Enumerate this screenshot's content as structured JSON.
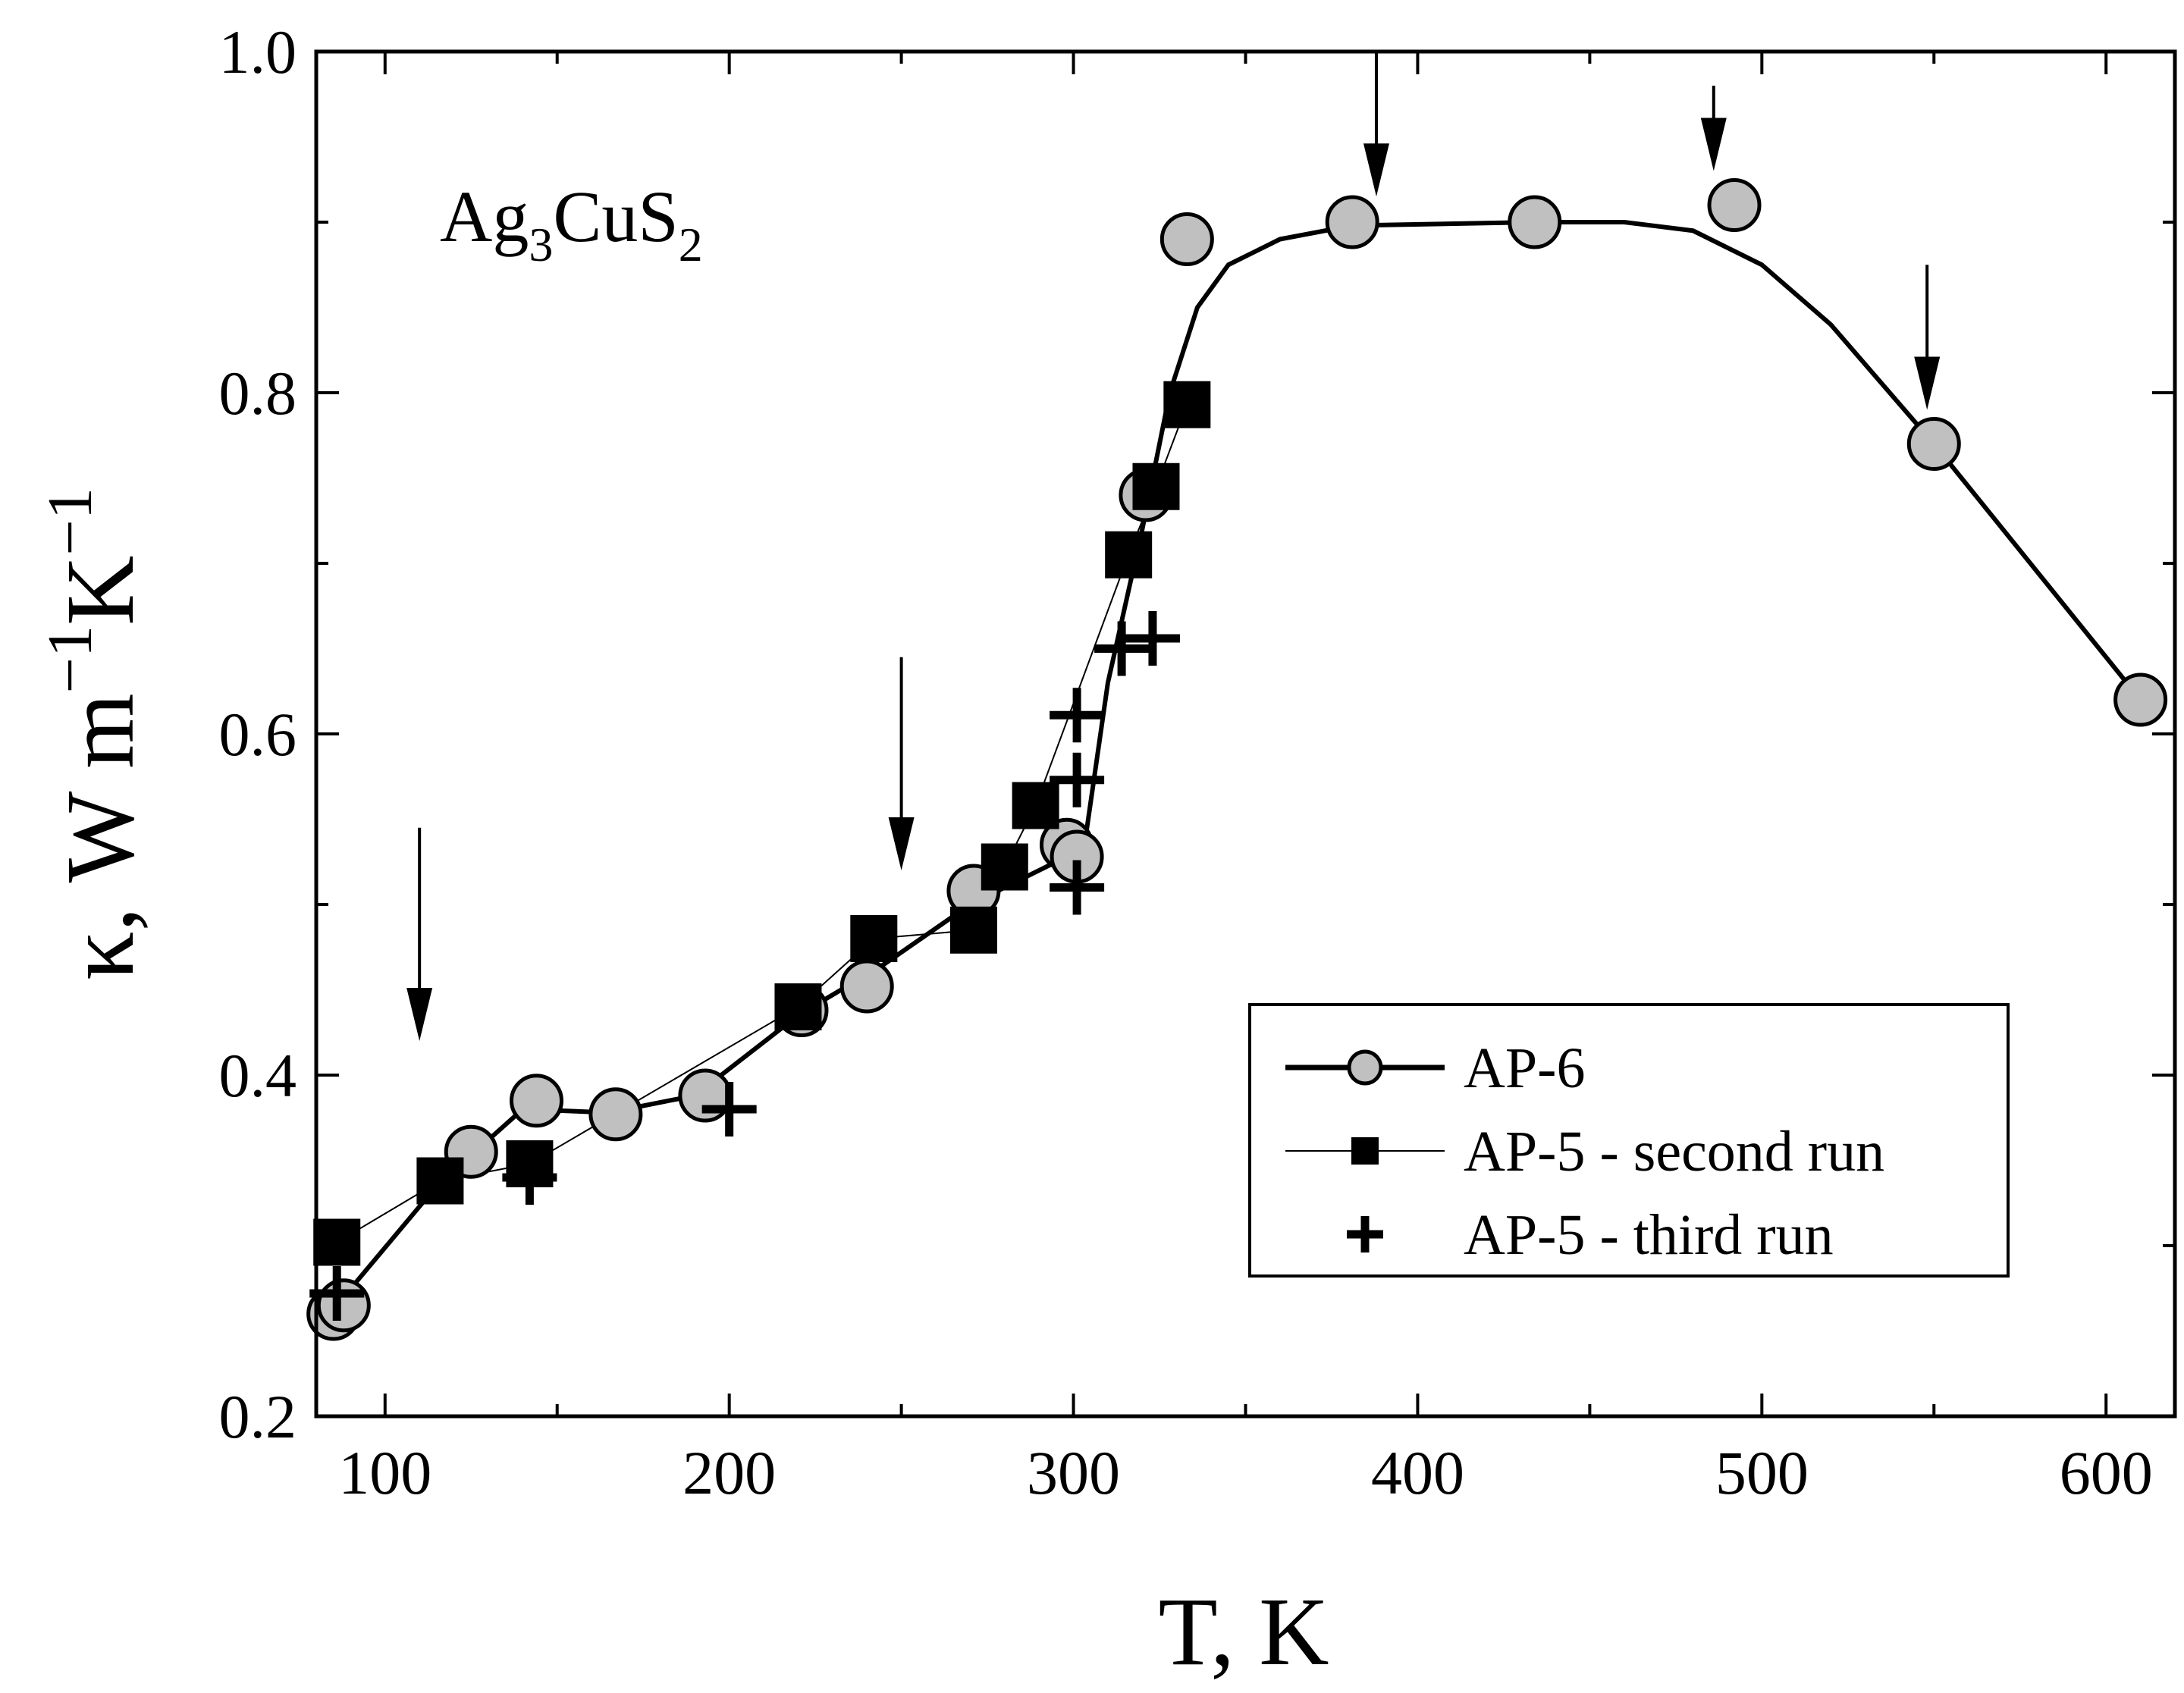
{
  "chart_data": {
    "type": "scatter",
    "title": "",
    "annotation": {
      "formula": {
        "base1": "Ag",
        "sub1": "3",
        "base2": "CuS",
        "sub2": "2"
      }
    },
    "xlabel": "T, K",
    "ylabel": {
      "kappa": "κ, W m",
      "exp1": "−1",
      "k": "K",
      "exp2": "−1"
    },
    "xlim": [
      80,
      620
    ],
    "ylim": [
      0.2,
      1.0
    ],
    "xticks": [
      100,
      200,
      300,
      400,
      500,
      600
    ],
    "xtick_labels": [
      "100",
      "200",
      "300",
      "400",
      "500",
      "600"
    ],
    "yticks": [
      0.2,
      0.4,
      0.6,
      0.8,
      1.0
    ],
    "ytick_labels": [
      "0.2",
      "0.4",
      "0.6",
      "0.8",
      "1.0"
    ],
    "legend_position": "lower-right",
    "series": [
      {
        "name": "AP-6",
        "marker": "circle",
        "marker_color": "#c0c0c0",
        "line": "thick",
        "points": [
          [
            85,
            0.26
          ],
          [
            88,
            0.265
          ],
          [
            125,
            0.355
          ],
          [
            144,
            0.385
          ],
          [
            167,
            0.377
          ],
          [
            193,
            0.388
          ],
          [
            221,
            0.438
          ],
          [
            240,
            0.452
          ],
          [
            271,
            0.508
          ],
          [
            298,
            0.535
          ],
          [
            301,
            0.528
          ],
          [
            321,
            0.74
          ],
          [
            333,
            0.89
          ],
          [
            381,
            0.9
          ],
          [
            434,
            0.9
          ],
          [
            492,
            0.91
          ],
          [
            550,
            0.77
          ],
          [
            610,
            0.62
          ]
        ],
        "curve": [
          [
            88,
            0.27
          ],
          [
            115,
            0.335
          ],
          [
            140,
            0.38
          ],
          [
            165,
            0.378
          ],
          [
            190,
            0.388
          ],
          [
            220,
            0.435
          ],
          [
            245,
            0.465
          ],
          [
            270,
            0.5
          ],
          [
            295,
            0.525
          ],
          [
            303,
            0.532
          ],
          [
            310,
            0.63
          ],
          [
            320,
            0.72
          ],
          [
            328,
            0.8
          ],
          [
            336,
            0.85
          ],
          [
            345,
            0.875
          ],
          [
            360,
            0.89
          ],
          [
            381,
            0.898
          ],
          [
            434,
            0.9
          ],
          [
            460,
            0.9
          ],
          [
            480,
            0.895
          ],
          [
            500,
            0.875
          ],
          [
            520,
            0.84
          ],
          [
            550,
            0.77
          ],
          [
            580,
            0.695
          ],
          [
            610,
            0.62
          ]
        ]
      },
      {
        "name": "AP-5 - second run",
        "marker": "square",
        "marker_color": "#000000",
        "line": "thin",
        "points": [
          [
            86,
            0.302
          ],
          [
            116,
            0.338
          ],
          [
            142,
            0.348
          ],
          [
            220,
            0.44
          ],
          [
            242,
            0.48
          ],
          [
            271,
            0.485
          ],
          [
            280,
            0.522
          ],
          [
            289,
            0.558
          ],
          [
            316,
            0.705
          ],
          [
            324,
            0.745
          ],
          [
            333,
            0.793
          ]
        ]
      },
      {
        "name": "AP-5 - third run",
        "marker": "cross",
        "marker_color": "#000000",
        "line": "none",
        "points": [
          [
            86,
            0.272
          ],
          [
            142,
            0.34
          ],
          [
            200,
            0.38
          ],
          [
            301,
            0.51
          ],
          [
            301,
            0.573
          ],
          [
            301,
            0.611
          ],
          [
            314,
            0.65
          ],
          [
            323,
            0.656
          ]
        ]
      }
    ],
    "arrows": [
      {
        "x": 110,
        "y_top": 0.545,
        "y_tip": 0.42
      },
      {
        "x": 250,
        "y_top": 0.645,
        "y_tip": 0.52
      },
      {
        "x": 388,
        "y_top": 1.0,
        "y_tip": 0.915
      },
      {
        "x": 486,
        "y_top": 0.98,
        "y_tip": 0.93
      },
      {
        "x": 548,
        "y_top": 0.875,
        "y_tip": 0.79
      }
    ]
  }
}
